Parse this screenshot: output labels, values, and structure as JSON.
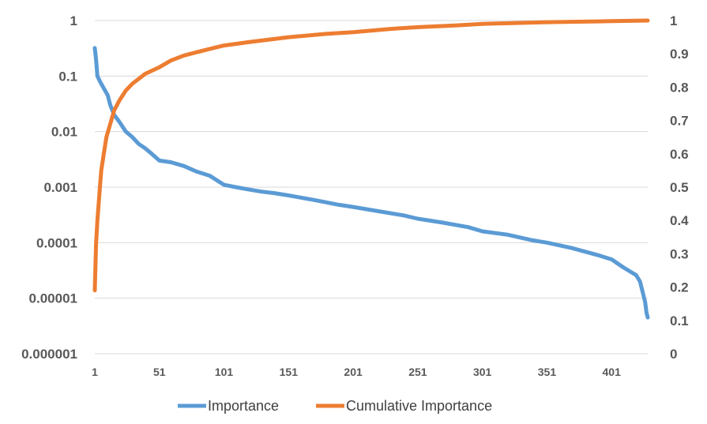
{
  "chart_data": {
    "type": "line",
    "title": "",
    "xlabel": "",
    "x_ticks": [
      "1",
      "51",
      "101",
      "151",
      "201",
      "251",
      "301",
      "351",
      "401"
    ],
    "x_range": [
      1,
      429
    ],
    "y_left": {
      "scale": "log",
      "range": [
        1e-06,
        1
      ],
      "tick_labels": [
        "1",
        "0.1",
        "0.01",
        "0.001",
        "0.0001",
        "0.00001",
        "0.000001"
      ]
    },
    "y_right": {
      "scale": "linear",
      "range": [
        0,
        1
      ],
      "tick_labels": [
        "1",
        "0.9",
        "0.8",
        "0.7",
        "0.6",
        "0.5",
        "0.4",
        "0.3",
        "0.2",
        "0.1",
        "0"
      ]
    },
    "grid": true,
    "legend_position": "bottom",
    "series": [
      {
        "name": "Importance",
        "axis": "left",
        "color": "#5b9bd5",
        "points": [
          [
            1,
            0.32
          ],
          [
            2,
            0.2
          ],
          [
            3,
            0.1
          ],
          [
            5,
            0.08
          ],
          [
            8,
            0.06
          ],
          [
            11,
            0.045
          ],
          [
            13,
            0.03
          ],
          [
            16,
            0.02
          ],
          [
            20,
            0.015
          ],
          [
            25,
            0.01
          ],
          [
            30,
            0.008
          ],
          [
            35,
            0.006
          ],
          [
            40,
            0.005
          ],
          [
            45,
            0.004
          ],
          [
            51,
            0.003
          ],
          [
            60,
            0.0028
          ],
          [
            70,
            0.0024
          ],
          [
            80,
            0.0019
          ],
          [
            90,
            0.0016
          ],
          [
            101,
            0.0011
          ],
          [
            110,
            0.001
          ],
          [
            120,
            0.00091
          ],
          [
            130,
            0.00083
          ],
          [
            140,
            0.00078
          ],
          [
            151,
            0.00071
          ],
          [
            170,
            0.00059
          ],
          [
            190,
            0.00048
          ],
          [
            201,
            0.00044
          ],
          [
            220,
            0.00037
          ],
          [
            240,
            0.00031
          ],
          [
            251,
            0.00027
          ],
          [
            270,
            0.00023
          ],
          [
            290,
            0.00019
          ],
          [
            301,
            0.00016
          ],
          [
            320,
            0.00014
          ],
          [
            340,
            0.00011
          ],
          [
            351,
            0.0001
          ],
          [
            370,
            8e-05
          ],
          [
            390,
            6e-05
          ],
          [
            401,
            5e-05
          ],
          [
            410,
            3.6e-05
          ],
          [
            420,
            2.6e-05
          ],
          [
            423,
            2e-05
          ],
          [
            425,
            1.3e-05
          ],
          [
            427,
            8.5e-06
          ],
          [
            428,
            5.5e-06
          ],
          [
            429,
            4.5e-06
          ]
        ]
      },
      {
        "name": "Cumulative Importance",
        "axis": "right",
        "color": "#ed7d31",
        "points": [
          [
            1,
            0.19
          ],
          [
            2,
            0.33
          ],
          [
            3,
            0.4
          ],
          [
            4,
            0.45
          ],
          [
            5,
            0.5
          ],
          [
            6,
            0.55
          ],
          [
            8,
            0.6
          ],
          [
            10,
            0.65
          ],
          [
            13,
            0.69
          ],
          [
            16,
            0.73
          ],
          [
            20,
            0.76
          ],
          [
            25,
            0.79
          ],
          [
            30,
            0.81
          ],
          [
            40,
            0.84
          ],
          [
            51,
            0.86
          ],
          [
            60,
            0.88
          ],
          [
            70,
            0.895
          ],
          [
            80,
            0.905
          ],
          [
            90,
            0.915
          ],
          [
            101,
            0.925
          ],
          [
            120,
            0.935
          ],
          [
            151,
            0.95
          ],
          [
            180,
            0.96
          ],
          [
            201,
            0.965
          ],
          [
            230,
            0.975
          ],
          [
            251,
            0.98
          ],
          [
            280,
            0.985
          ],
          [
            301,
            0.99
          ],
          [
            351,
            0.995
          ],
          [
            401,
            0.998
          ],
          [
            429,
            1.0
          ]
        ]
      }
    ]
  }
}
